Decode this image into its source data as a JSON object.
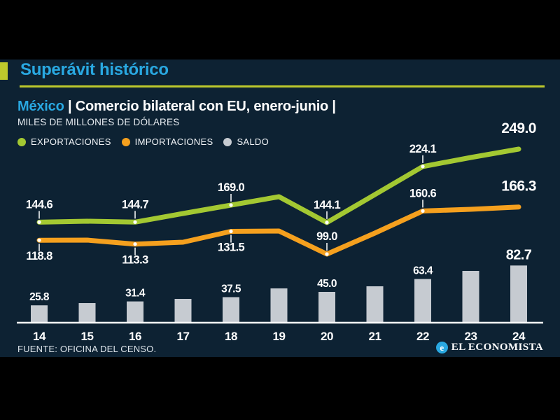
{
  "header": {
    "kicker": "Superávit histórico"
  },
  "title": {
    "highlight": "México",
    "rest": " | Comercio bilateral con EU, enero-junio |",
    "subtitle": "MILES DE MILLONES DE DÓLARES"
  },
  "legend": [
    {
      "label": "EXPORTACIONES",
      "color": "#a3c832"
    },
    {
      "label": "IMPORTACIONES",
      "color": "#f5a01e"
    },
    {
      "label": "SALDO",
      "color": "#c6cbd1"
    }
  ],
  "footer": {
    "source": "FUENTE: OFICINA DEL CENSO.",
    "brand": "EL ECONOMISTA",
    "brand_mark_glyph": "e"
  },
  "colors": {
    "background": "#000000",
    "panel": "#0d2233",
    "accent_yellow": "#bdc92c",
    "accent_cyan": "#29a8e1",
    "export_green": "#a3c832",
    "import_orange": "#f5a01e",
    "saldo_gray": "#c6cbd1",
    "axis_white": "#ffffff"
  },
  "chart_data": {
    "type": "line+bar",
    "title": "México | Comercio bilateral con EU, enero-junio",
    "ylabel": "MILES DE MILLONES DE DÓLARES",
    "x": [
      "14",
      "15",
      "16",
      "17",
      "18",
      "19",
      "20",
      "21",
      "22",
      "23",
      "24"
    ],
    "ylim": [
      0,
      270
    ],
    "grid": false,
    "legend_position": "top-left",
    "unlabeled_values_estimated": true,
    "series": [
      {
        "name": "EXPORTACIONES",
        "type": "line",
        "color": "#a3c832",
        "values": [
          144.6,
          146,
          144.7,
          157,
          169.0,
          181,
          144.1,
          184,
          224.1,
          237,
          249.0
        ],
        "value_labels": [
          "144.6",
          null,
          "144.7",
          null,
          "169.0",
          null,
          "144.1",
          null,
          "224.1",
          null,
          "249.0"
        ],
        "label_side": [
          "above",
          null,
          "above",
          null,
          "above",
          null,
          "above",
          null,
          "above",
          null,
          "above"
        ]
      },
      {
        "name": "IMPORTACIONES",
        "type": "line",
        "color": "#f5a01e",
        "values": [
          118.8,
          119,
          113.3,
          116,
          131.5,
          132,
          99.0,
          129,
          160.6,
          163,
          166.3
        ],
        "value_labels": [
          "118.8",
          null,
          "113.3",
          null,
          "131.5",
          null,
          "99.0",
          null,
          "160.6",
          null,
          "166.3"
        ],
        "label_side": [
          "below",
          null,
          "below",
          null,
          "below",
          null,
          "above",
          null,
          "above",
          null,
          "above"
        ]
      },
      {
        "name": "SALDO",
        "type": "bar",
        "color": "#c6cbd1",
        "values": [
          25.8,
          29,
          31.4,
          35,
          37.5,
          50,
          45.0,
          53,
          63.4,
          75,
          82.7
        ],
        "value_labels": [
          "25.8",
          null,
          "31.4",
          null,
          "37.5",
          null,
          "45.0",
          null,
          "63.4",
          null,
          "82.7"
        ]
      }
    ]
  }
}
